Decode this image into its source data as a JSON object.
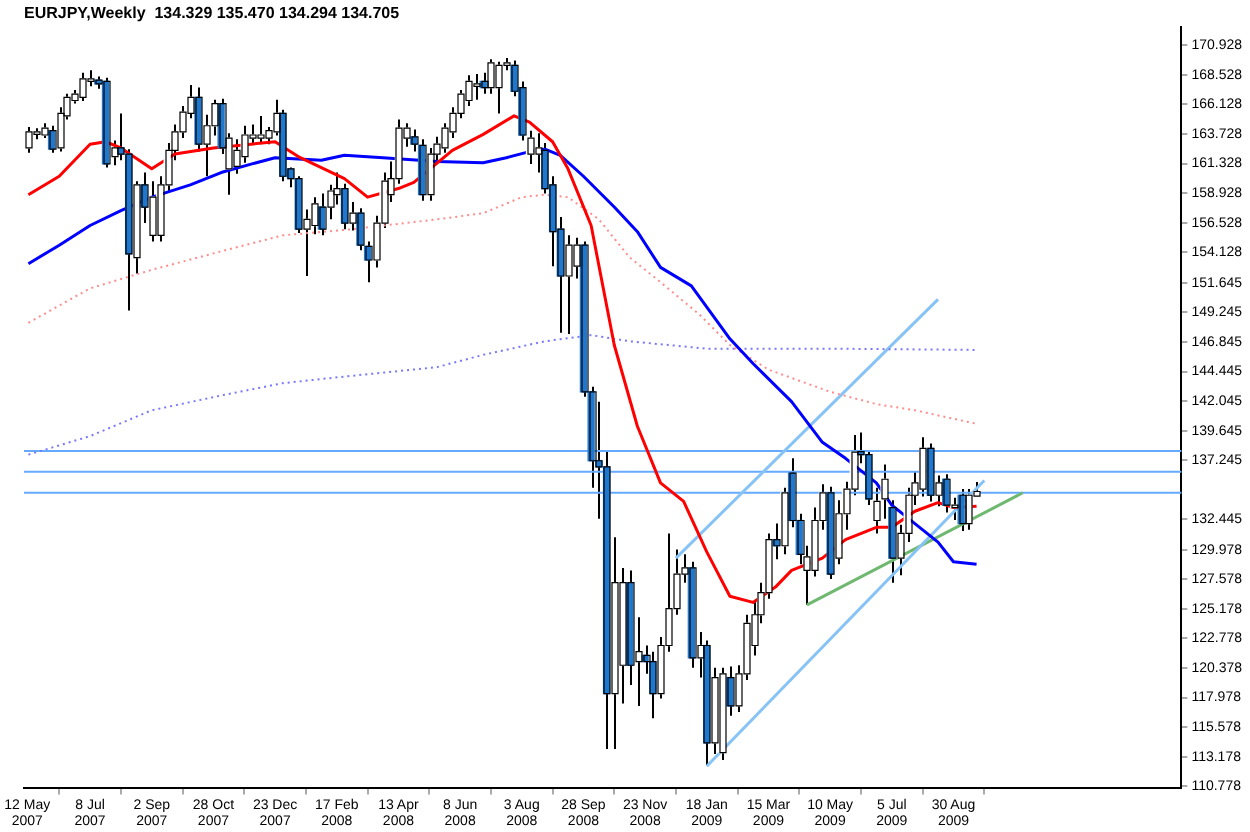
{
  "chart_data": {
    "type": "candlestick",
    "title": "EURJPY,Weekly  134.329 135.470 134.294 134.705",
    "x": [
      "2007-05-13",
      "2007-05-20",
      "2007-05-27",
      "2007-06-03",
      "2007-06-10",
      "2007-06-17",
      "2007-06-24",
      "2007-07-01",
      "2007-07-08",
      "2007-07-15",
      "2007-07-22",
      "2007-07-29",
      "2007-08-05",
      "2007-08-12",
      "2007-08-19",
      "2007-08-26",
      "2007-09-02",
      "2007-09-09",
      "2007-09-16",
      "2007-09-23",
      "2007-09-30",
      "2007-10-07",
      "2007-10-14",
      "2007-10-21",
      "2007-10-28",
      "2007-11-04",
      "2007-11-11",
      "2007-11-18",
      "2007-11-25",
      "2007-12-02",
      "2007-12-09",
      "2007-12-16",
      "2007-12-23",
      "2007-12-30",
      "2008-01-06",
      "2008-01-13",
      "2008-01-20",
      "2008-01-27",
      "2008-02-03",
      "2008-02-10",
      "2008-02-17",
      "2008-02-24",
      "2008-03-02",
      "2008-03-09",
      "2008-03-16",
      "2008-03-23",
      "2008-03-30",
      "2008-04-06",
      "2008-04-13",
      "2008-04-20",
      "2008-04-27",
      "2008-05-04",
      "2008-05-11",
      "2008-05-18",
      "2008-05-25",
      "2008-06-01",
      "2008-06-08",
      "2008-06-15",
      "2008-06-22",
      "2008-06-29",
      "2008-07-06",
      "2008-07-13",
      "2008-07-20",
      "2008-07-27",
      "2008-08-03",
      "2008-08-10",
      "2008-08-17",
      "2008-08-24",
      "2008-08-31",
      "2008-09-07",
      "2008-09-14",
      "2008-09-21",
      "2008-09-28",
      "2008-10-05",
      "2008-10-12",
      "2008-10-19",
      "2008-10-26",
      "2008-11-02",
      "2008-11-09",
      "2008-11-16",
      "2008-11-23",
      "2008-11-30",
      "2008-12-07",
      "2008-12-14",
      "2008-12-21",
      "2008-12-28",
      "2009-01-04",
      "2009-01-11",
      "2009-01-18",
      "2009-01-25",
      "2009-02-01",
      "2009-02-08",
      "2009-02-15",
      "2009-02-22",
      "2009-03-01",
      "2009-03-08",
      "2009-03-15",
      "2009-03-22",
      "2009-03-29",
      "2009-04-05",
      "2009-04-12",
      "2009-04-19",
      "2009-04-26",
      "2009-05-03",
      "2009-05-10",
      "2009-05-17",
      "2009-05-24",
      "2009-05-31",
      "2009-06-07",
      "2009-06-14",
      "2009-06-21",
      "2009-06-28",
      "2009-07-05",
      "2009-07-12",
      "2009-07-19",
      "2009-07-26",
      "2009-08-02",
      "2009-08-09",
      "2009-08-16",
      "2009-08-23",
      "2009-08-30",
      "2009-09-06",
      "2009-09-13",
      "2009-09-20"
    ],
    "ohlc": [
      [
        162.6,
        164.3,
        162.2,
        163.9
      ],
      [
        163.7,
        164.2,
        163.3,
        163.9
      ],
      [
        163.65,
        164.6,
        163.4,
        164.2
      ],
      [
        164.0,
        164.4,
        162.2,
        162.5
      ],
      [
        162.6,
        165.9,
        162.3,
        165.4
      ],
      [
        165.2,
        167.0,
        164.9,
        166.7
      ],
      [
        166.45,
        167.3,
        166.2,
        166.96
      ],
      [
        166.7,
        168.7,
        166.4,
        168.2
      ],
      [
        168.0,
        168.9,
        167.6,
        168.2
      ],
      [
        168.1,
        168.4,
        167.4,
        167.8
      ],
      [
        168.0,
        168.3,
        161.0,
        161.3
      ],
      [
        161.9,
        163.2,
        161.2,
        162.6
      ],
      [
        162.6,
        165.4,
        161.6,
        162.1
      ],
      [
        162.1,
        162.5,
        149.4,
        154.0
      ],
      [
        153.7,
        159.9,
        152.4,
        159.6
      ],
      [
        159.6,
        160.6,
        156.5,
        157.8
      ],
      [
        155.5,
        159.9,
        155.0,
        158.6
      ],
      [
        155.5,
        160.3,
        155.0,
        159.6
      ],
      [
        159.6,
        163.0,
        159.0,
        162.4
      ],
      [
        162.4,
        164.5,
        161.6,
        163.9
      ],
      [
        163.9,
        166.0,
        163.4,
        165.5
      ],
      [
        165.4,
        167.7,
        165.0,
        166.7
      ],
      [
        166.7,
        167.5,
        162.3,
        162.9
      ],
      [
        162.9,
        165.3,
        160.3,
        164.4
      ],
      [
        164.4,
        166.5,
        163.6,
        166.2
      ],
      [
        166.2,
        166.6,
        162.1,
        162.6
      ],
      [
        160.9,
        163.8,
        158.8,
        163.4
      ],
      [
        161.1,
        163.3,
        160.5,
        162.4
      ],
      [
        161.9,
        164.4,
        161.4,
        163.65
      ],
      [
        163.4,
        164.5,
        163.0,
        163.65
      ],
      [
        163.4,
        165.2,
        162.9,
        163.65
      ],
      [
        163.4,
        164.3,
        162.9,
        164.0
      ],
      [
        163.9,
        166.5,
        163.6,
        165.4
      ],
      [
        165.4,
        165.7,
        159.9,
        160.3
      ],
      [
        160.9,
        161.0,
        159.4,
        160.1
      ],
      [
        160.1,
        160.3,
        155.7,
        156.0
      ],
      [
        156.0,
        157.6,
        152.2,
        156.8
      ],
      [
        156.3,
        158.6,
        155.6,
        158.05
      ],
      [
        157.8,
        158.9,
        155.5,
        156.0
      ],
      [
        157.8,
        159.6,
        156.8,
        159.1
      ],
      [
        158.8,
        160.6,
        158.0,
        159.3
      ],
      [
        159.3,
        159.7,
        156.0,
        156.5
      ],
      [
        156.5,
        158.2,
        155.9,
        157.3
      ],
      [
        157.3,
        157.7,
        154.3,
        154.7
      ],
      [
        154.6,
        155.0,
        151.7,
        153.5
      ],
      [
        153.5,
        157.1,
        152.9,
        156.5
      ],
      [
        156.5,
        160.6,
        156.1,
        159.9
      ],
      [
        158.8,
        161.5,
        158.2,
        160.1
      ],
      [
        160.1,
        164.9,
        159.7,
        164.2
      ],
      [
        163.4,
        164.6,
        162.7,
        164.2
      ],
      [
        163.5,
        164.1,
        162.3,
        162.9
      ],
      [
        162.8,
        163.3,
        158.3,
        158.8
      ],
      [
        158.8,
        162.6,
        158.3,
        162.1
      ],
      [
        162.1,
        163.5,
        161.6,
        162.9
      ],
      [
        162.6,
        164.6,
        162.2,
        164.2
      ],
      [
        163.9,
        165.9,
        163.4,
        165.4
      ],
      [
        165.4,
        167.3,
        165.0,
        166.96
      ],
      [
        166.45,
        168.5,
        166.0,
        168.0
      ],
      [
        167.6,
        168.6,
        166.5,
        167.8
      ],
      [
        168.0,
        168.7,
        167.0,
        167.5
      ],
      [
        167.5,
        169.8,
        167.0,
        169.5
      ],
      [
        167.5,
        169.6,
        165.4,
        169.3
      ],
      [
        169.3,
        169.9,
        168.9,
        169.5
      ],
      [
        169.3,
        169.7,
        166.8,
        167.2
      ],
      [
        167.5,
        168.0,
        163.2,
        163.65
      ],
      [
        162.1,
        164.0,
        161.3,
        163.4
      ],
      [
        162.1,
        163.8,
        160.6,
        162.6
      ],
      [
        162.4,
        163.0,
        158.9,
        159.3
      ],
      [
        159.6,
        160.3,
        153.0,
        155.8
      ],
      [
        156.0,
        157.0,
        147.6,
        152.2
      ],
      [
        152.2,
        155.5,
        147.5,
        154.7
      ],
      [
        153.0,
        155.3,
        152.0,
        154.7
      ],
      [
        154.7,
        155.0,
        142.4,
        142.8
      ],
      [
        142.8,
        143.2,
        135.0,
        137.2
      ],
      [
        137.2,
        142.0,
        132.5,
        136.7
      ],
      [
        136.7,
        138.0,
        113.8,
        118.3
      ],
      [
        118.3,
        131.0,
        113.8,
        127.3
      ],
      [
        120.6,
        128.5,
        117.5,
        127.3
      ],
      [
        127.3,
        128.3,
        119.0,
        120.6
      ],
      [
        120.9,
        124.5,
        117.3,
        121.7
      ],
      [
        121.4,
        122.2,
        119.9,
        120.9
      ],
      [
        120.9,
        121.7,
        116.3,
        118.3
      ],
      [
        118.3,
        122.9,
        117.9,
        122.2
      ],
      [
        122.2,
        131.3,
        121.7,
        125.2
      ],
      [
        125.2,
        130.0,
        124.7,
        128.0
      ],
      [
        128.0,
        129.6,
        127.3,
        128.5
      ],
      [
        128.5,
        129.0,
        120.4,
        121.2
      ],
      [
        121.2,
        123.3,
        119.6,
        122.2
      ],
      [
        122.2,
        122.6,
        112.5,
        114.3
      ],
      [
        114.3,
        120.4,
        113.4,
        119.6
      ],
      [
        113.5,
        120.4,
        112.9,
        119.9
      ],
      [
        119.6,
        120.5,
        116.5,
        117.3
      ],
      [
        117.3,
        120.6,
        116.8,
        119.9
      ],
      [
        119.9,
        124.7,
        119.4,
        124.0
      ],
      [
        122.2,
        125.9,
        121.4,
        124.7
      ],
      [
        124.7,
        127.3,
        124.0,
        126.5
      ],
      [
        126.5,
        131.3,
        126.0,
        130.8
      ],
      [
        130.8,
        132.1,
        129.2,
        130.3
      ],
      [
        130.3,
        135.0,
        129.6,
        134.6
      ],
      [
        136.2,
        137.4,
        131.8,
        132.35
      ],
      [
        132.35,
        132.9,
        128.8,
        129.6
      ],
      [
        128.3,
        130.3,
        125.5,
        129.4
      ],
      [
        128.3,
        133.4,
        127.8,
        132.35
      ],
      [
        132.35,
        135.3,
        131.6,
        134.6
      ],
      [
        134.6,
        135.1,
        127.6,
        128.0
      ],
      [
        129.3,
        134.0,
        128.8,
        132.9
      ],
      [
        132.9,
        135.5,
        131.6,
        134.9
      ],
      [
        134.9,
        139.3,
        134.4,
        137.9
      ],
      [
        137.95,
        139.5,
        137.0,
        137.7
      ],
      [
        137.7,
        138.0,
        133.6,
        134.1
      ],
      [
        132.35,
        135.0,
        131.3,
        133.9
      ],
      [
        134.1,
        136.9,
        132.5,
        135.7
      ],
      [
        133.4,
        134.0,
        127.3,
        129.3
      ],
      [
        129.3,
        132.0,
        127.9,
        131.3
      ],
      [
        131.3,
        135.0,
        130.6,
        134.4
      ],
      [
        134.4,
        136.3,
        133.6,
        135.4
      ],
      [
        134.9,
        139.1,
        134.3,
        138.2
      ],
      [
        138.2,
        138.6,
        133.9,
        134.4
      ],
      [
        134.4,
        136.0,
        133.5,
        135.4
      ],
      [
        135.7,
        136.1,
        133.0,
        133.6
      ],
      [
        133.4,
        134.2,
        132.4,
        133.6
      ],
      [
        134.4,
        134.9,
        131.5,
        132.1
      ],
      [
        132.1,
        134.9,
        131.6,
        134.4
      ],
      [
        134.329,
        135.47,
        134.294,
        134.705
      ]
    ],
    "colors": [
      "#ffffff",
      "#ffffff",
      "#ffffff",
      "#1e78d0",
      "#ffffff",
      "#ffffff",
      "#ffffff",
      "#ffffff",
      "#ffffff",
      "#1e78d0",
      "#1e78d0",
      "#ffffff",
      "#1e78d0",
      "#1e78d0",
      "#ffffff",
      "#1e78d0",
      "#ffffff",
      "#ffffff",
      "#ffffff",
      "#ffffff",
      "#ffffff",
      "#ffffff",
      "#1e78d0",
      "#ffffff",
      "#ffffff",
      "#1e78d0",
      "#ffffff",
      "#ffffff",
      "#ffffff",
      "#ffffff",
      "#ffffff",
      "#ffffff",
      "#ffffff",
      "#1e78d0",
      "#1e78d0",
      "#1e78d0",
      "#ffffff",
      "#ffffff",
      "#1e78d0",
      "#ffffff",
      "#ffffff",
      "#1e78d0",
      "#ffffff",
      "#1e78d0",
      "#1e78d0",
      "#ffffff",
      "#ffffff",
      "#ffffff",
      "#ffffff",
      "#ffffff",
      "#1e78d0",
      "#1e78d0",
      "#ffffff",
      "#ffffff",
      "#ffffff",
      "#ffffff",
      "#ffffff",
      "#ffffff",
      "#ffffff",
      "#1e78d0",
      "#ffffff",
      "#ffffff",
      "#ffffff",
      "#1e78d0",
      "#1e78d0",
      "#ffffff",
      "#ffffff",
      "#1e78d0",
      "#1e78d0",
      "#1e78d0",
      "#ffffff",
      "#ffffff",
      "#1e78d0",
      "#1e78d0",
      "#1e78d0",
      "#1e78d0",
      "#ffffff",
      "#ffffff",
      "#1e78d0",
      "#ffffff",
      "#1e78d0",
      "#1e78d0",
      "#ffffff",
      "#ffffff",
      "#ffffff",
      "#ffffff",
      "#1e78d0",
      "#ffffff",
      "#1e78d0",
      "#ffffff",
      "#ffffff",
      "#1e78d0",
      "#ffffff",
      "#ffffff",
      "#ffffff",
      "#ffffff",
      "#ffffff",
      "#1e78d0",
      "#ffffff",
      "#1e78d0",
      "#1e78d0",
      "#ffffff",
      "#ffffff",
      "#ffffff",
      "#1e78d0",
      "#ffffff",
      "#ffffff",
      "#ffffff",
      "#1e78d0",
      "#1e78d0",
      "#ffffff",
      "#ffffff",
      "#1e78d0",
      "#ffffff",
      "#ffffff",
      "#ffffff",
      "#ffffff",
      "#1e78d0",
      "#ffffff",
      "#1e78d0",
      "#ffffff",
      "#1e78d0",
      "#ffffff",
      "#ffffff"
    ],
    "series": [
      {
        "type": "line",
        "color": "#ff0000",
        "line_style": "solid",
        "x": [
          "2007-05-13",
          "2007-06-10",
          "2007-07-08",
          "2007-07-22",
          "2007-08-05",
          "2007-09-02",
          "2007-09-23",
          "2007-10-28",
          "2007-12-23",
          "2008-01-13",
          "2008-02-24",
          "2008-03-16",
          "2008-04-13",
          "2008-04-27",
          "2008-06-01",
          "2008-06-29",
          "2008-07-27",
          "2008-08-10",
          "2008-08-31",
          "2008-09-14",
          "2008-10-05",
          "2008-10-26",
          "2008-11-16",
          "2008-12-07",
          "2008-12-28",
          "2009-01-18",
          "2009-02-08",
          "2009-03-01",
          "2009-03-22",
          "2009-04-05",
          "2009-05-03",
          "2009-05-24",
          "2009-06-21",
          "2009-07-05",
          "2009-07-26",
          "2009-08-16",
          "2009-08-30",
          "2009-09-20"
        ],
        "values": [
          158.8,
          160.3,
          162.9,
          163.1,
          162.6,
          160.9,
          162.1,
          162.6,
          163.1,
          161.9,
          160.1,
          158.6,
          159.3,
          159.8,
          162.4,
          163.7,
          165.2,
          164.7,
          163.1,
          160.9,
          156.3,
          146.6,
          140.0,
          135.4,
          133.9,
          129.8,
          126.2,
          125.7,
          127.0,
          128.3,
          129.3,
          130.8,
          131.8,
          131.8,
          133.1,
          133.8,
          133.4,
          133.5
        ]
      },
      {
        "type": "line",
        "color": "#0000ff",
        "line_style": "solid",
        "x": [
          "2007-05-13",
          "2007-06-10",
          "2007-07-08",
          "2007-08-05",
          "2007-09-02",
          "2007-10-07",
          "2007-11-04",
          "2007-12-02",
          "2007-12-23",
          "2008-02-03",
          "2008-02-24",
          "2008-03-30",
          "2008-05-18",
          "2008-06-29",
          "2008-07-20",
          "2008-08-10",
          "2008-08-24",
          "2008-09-07",
          "2008-09-28",
          "2008-10-26",
          "2008-11-16",
          "2008-12-07",
          "2009-01-04",
          "2009-02-08",
          "2009-03-01",
          "2009-04-05",
          "2009-05-03",
          "2009-05-24",
          "2009-06-21",
          "2009-07-05",
          "2009-07-26",
          "2009-08-16",
          "2009-08-30",
          "2009-09-20"
        ],
        "values": [
          153.2,
          154.7,
          156.3,
          157.5,
          158.6,
          159.6,
          160.6,
          161.3,
          161.8,
          161.6,
          162.0,
          161.8,
          161.5,
          161.4,
          161.8,
          162.3,
          162.5,
          162.0,
          160.3,
          157.8,
          155.8,
          152.9,
          151.4,
          147.1,
          145.1,
          142.0,
          138.7,
          137.4,
          135.4,
          133.6,
          132.1,
          130.6,
          129.0,
          128.8
        ]
      },
      {
        "type": "line",
        "color": "#ff8c8c",
        "line_style": "dotted",
        "x": [
          "2007-05-13",
          "2007-07-08",
          "2007-09-02",
          "2007-11-04",
          "2007-12-30",
          "2008-03-02",
          "2008-05-18",
          "2008-06-29",
          "2008-08-03",
          "2008-08-24",
          "2008-09-14",
          "2008-10-12",
          "2008-11-09",
          "2008-12-07",
          "2009-01-11",
          "2009-02-08",
          "2009-03-15",
          "2009-05-10",
          "2009-06-21",
          "2009-07-26",
          "2009-09-20"
        ],
        "values": [
          148.4,
          151.2,
          152.7,
          154.2,
          155.5,
          156.0,
          156.8,
          157.3,
          158.6,
          158.8,
          158.6,
          156.8,
          153.7,
          151.7,
          149.1,
          146.6,
          144.6,
          142.8,
          141.8,
          141.3,
          140.2
        ]
      },
      {
        "type": "line",
        "color": "#7878ff",
        "line_style": "dotted",
        "x": [
          "2007-05-13",
          "2007-07-08",
          "2007-09-02",
          "2007-11-04",
          "2007-12-30",
          "2008-03-02",
          "2008-05-18",
          "2008-06-29",
          "2008-08-24",
          "2008-10-05",
          "2008-11-09",
          "2009-01-18",
          "2009-05-10",
          "2009-09-20"
        ],
        "values": [
          137.7,
          139.2,
          141.3,
          142.5,
          143.5,
          144.1,
          144.8,
          145.8,
          146.9,
          147.4,
          146.9,
          146.3,
          146.3,
          146.2
        ]
      },
      {
        "type": "line",
        "color": "#87c3f5",
        "line_style": "solid",
        "x": [
          "2009-01-18",
          "2009-09-27"
        ],
        "values": [
          112.4,
          135.6
        ]
      },
      {
        "type": "line",
        "color": "#87c3f5",
        "line_style": "solid",
        "x": [
          "2008-12-21",
          "2009-08-16"
        ],
        "values": [
          129.3,
          150.3
        ]
      },
      {
        "type": "line",
        "color": "#6fb86f",
        "line_style": "solid",
        "x": [
          "2009-04-19",
          "2009-11-01"
        ],
        "values": [
          125.5,
          134.6
        ]
      }
    ],
    "ref_lines": [
      {
        "axis": "y",
        "value": 138.0,
        "color": "#66aaff"
      },
      {
        "axis": "y",
        "value": 136.3,
        "color": "#66aaff"
      },
      {
        "axis": "y",
        "value": 134.6,
        "color": "#66aaff"
      }
    ],
    "xlim": [
      "2007-05-09",
      "2010-03-25"
    ],
    "xticks": [
      {
        "value": "2007-05-12",
        "label": "12 May 2007"
      },
      {
        "value": "2007-07-08",
        "label": "8 Jul 2007"
      },
      {
        "value": "2007-09-02",
        "label": "2 Sep 2007"
      },
      {
        "value": "2007-10-28",
        "label": "28 Oct 2007"
      },
      {
        "value": "2007-12-23",
        "label": "23 Dec 2007"
      },
      {
        "value": "2008-02-17",
        "label": "17 Feb 2008"
      },
      {
        "value": "2008-04-13",
        "label": "13 Apr 2008"
      },
      {
        "value": "2008-06-08",
        "label": "8 Jun 2008"
      },
      {
        "value": "2008-08-03",
        "label": "3 Aug 2008"
      },
      {
        "value": "2008-09-28",
        "label": "28 Sep 2008"
      },
      {
        "value": "2008-11-23",
        "label": "23 Nov 2008"
      },
      {
        "value": "2009-01-18",
        "label": "18 Jan 2009"
      },
      {
        "value": "2009-03-15",
        "label": "15 Mar 2009"
      },
      {
        "value": "2009-05-10",
        "label": "10 May 2009"
      },
      {
        "value": "2009-07-05",
        "label": "5 Jul 2009"
      },
      {
        "value": "2009-08-30",
        "label": "30 Aug 2009"
      }
    ],
    "ylim": [
      110.6,
      172.4
    ],
    "yticks": [
      170.928,
      168.528,
      166.128,
      163.728,
      161.328,
      158.928,
      156.528,
      154.128,
      151.645,
      149.245,
      146.845,
      144.445,
      142.045,
      139.645,
      137.245,
      132.445,
      129.978,
      127.578,
      125.178,
      122.778,
      120.378,
      117.978,
      115.578,
      113.178,
      110.778
    ],
    "grid": false,
    "legend": false
  }
}
